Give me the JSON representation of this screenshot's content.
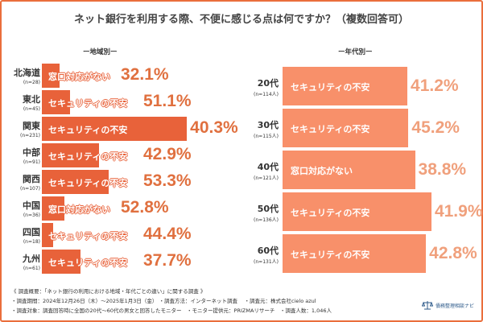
{
  "title": "ネット銀行を利用する際、不便に感じる点は何ですか？（複数回答可）",
  "colors": {
    "frame": "#ea6e3c",
    "region_bar": "#e8623a",
    "region_text": "#e0703f",
    "age_bar": "#f8906a",
    "age_text": "#f0a07c"
  },
  "chart_data": [
    {
      "type": "bar",
      "title": "ー地域別ー",
      "orientation": "horizontal",
      "bar_length_encodes": "n",
      "categories": [
        "北海道",
        "東北",
        "関東",
        "中部",
        "関西",
        "中国",
        "四国",
        "九州"
      ],
      "n_labels": [
        "(n=28)",
        "(n=45)",
        "(n=231)",
        "(n=91)",
        "(n=107)",
        "(n=36)",
        "(n=18)",
        "(n=61)"
      ],
      "n": [
        28,
        45,
        231,
        91,
        107,
        36,
        18,
        61
      ],
      "top_answer": [
        "窓口対応がない",
        "セキュリティの不安",
        "セキュリティの不安",
        "セキュリティの不安",
        "セキュリティの不安",
        "窓口対応がない",
        "セキュリティの不安",
        "セキュリティの不安"
      ],
      "values": [
        32.1,
        51.1,
        40.3,
        42.9,
        53.3,
        52.8,
        44.4,
        37.7
      ],
      "value_labels": [
        "32.1%",
        "51.1%",
        "40.3%",
        "42.9%",
        "53.3%",
        "52.8%",
        "44.4%",
        "37.7%"
      ]
    },
    {
      "type": "bar",
      "title": "ー年代別ー",
      "orientation": "horizontal",
      "bar_length_encodes": "n",
      "categories": [
        "20代",
        "30代",
        "40代",
        "50代",
        "60代"
      ],
      "n_labels": [
        "(n=114人)",
        "(n=115人)",
        "(n=121人)",
        "(n=136人)",
        "(n=131人)"
      ],
      "n": [
        114,
        115,
        121,
        136,
        131
      ],
      "top_answer": [
        "セキュリティの不安",
        "セキュリティの不安",
        "窓口対応がない",
        "セキュリティの不安",
        "セキュリティの不安"
      ],
      "values": [
        41.2,
        45.2,
        38.8,
        41.9,
        42.8
      ],
      "value_labels": [
        "41.2%",
        "45.2%",
        "38.8%",
        "41.9%",
        "42.8%"
      ]
    }
  ],
  "footer": {
    "line1": "《 調査概要：「ネット銀行の利用における地域・年代ごとの違い」に関する調査 》",
    "line2": "・調査期間：2024年12月26日（木）～2025年1月3日（金） ・調査方法：インターネット調査　 ・調査元：株式会社cielo azul",
    "line3": "・調査対象：調査回答時に全国の20代～60代の男女と回答したモニター　・モニター提供元：PRIZMAリサーチ　・調査人数：1,046人",
    "logo": "債務整理相談ナビ"
  }
}
